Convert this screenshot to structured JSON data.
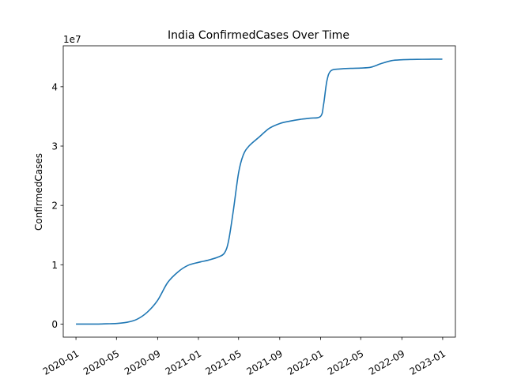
{
  "chart_data": {
    "type": "line",
    "title": "India  ConfirmedCases Over Time",
    "xlabel": "",
    "ylabel": "ConfirmedCases",
    "y_offset_text": "1e7",
    "x_tick_labels": [
      "2020-01",
      "2020-05",
      "2020-09",
      "2021-01",
      "2021-05",
      "2021-09",
      "2022-01",
      "2022-05",
      "2022-09",
      "2023-01"
    ],
    "y_tick_labels": [
      "0",
      "1",
      "2",
      "3",
      "4"
    ],
    "y_tick_values": [
      0,
      10000000,
      20000000,
      30000000,
      40000000
    ],
    "xlim": [
      "2019-11-24",
      "2023-02-08"
    ],
    "ylim": [
      -2200000,
      46900000
    ],
    "grid": false,
    "line_color": "#1f77b4",
    "series": [
      {
        "x": [
          "2020-01-01",
          "2020-03-01",
          "2020-04-01",
          "2020-05-01",
          "2020-06-01",
          "2020-07-01",
          "2020-08-01",
          "2020-09-01",
          "2020-10-01",
          "2020-11-01",
          "2020-12-01",
          "2021-01-01",
          "2021-02-01",
          "2021-03-01",
          "2021-03-20",
          "2021-04-01",
          "2021-04-15",
          "2021-05-01",
          "2021-05-15",
          "2021-06-01",
          "2021-07-01",
          "2021-08-01",
          "2021-09-01",
          "2021-10-01",
          "2021-11-01",
          "2021-12-01",
          "2022-01-01",
          "2022-01-10",
          "2022-01-20",
          "2022-02-01",
          "2022-03-01",
          "2022-04-01",
          "2022-05-01",
          "2022-06-01",
          "2022-07-01",
          "2022-08-01",
          "2022-09-01",
          "2022-10-01",
          "2022-11-01",
          "2022-12-01",
          "2022-12-31"
        ],
        "y": [
          0,
          3000,
          50000,
          100000,
          300000,
          800000,
          2000000,
          4000000,
          7000000,
          8800000,
          9900000,
          10400000,
          10800000,
          11300000,
          12000000,
          14000000,
          19000000,
          25500000,
          28500000,
          30000000,
          31500000,
          33000000,
          33800000,
          34200000,
          34500000,
          34700000,
          35000000,
          37000000,
          41000000,
          42700000,
          43000000,
          43100000,
          43150000,
          43300000,
          43900000,
          44400000,
          44550000,
          44600000,
          44620000,
          44640000,
          44650000
        ]
      }
    ]
  }
}
